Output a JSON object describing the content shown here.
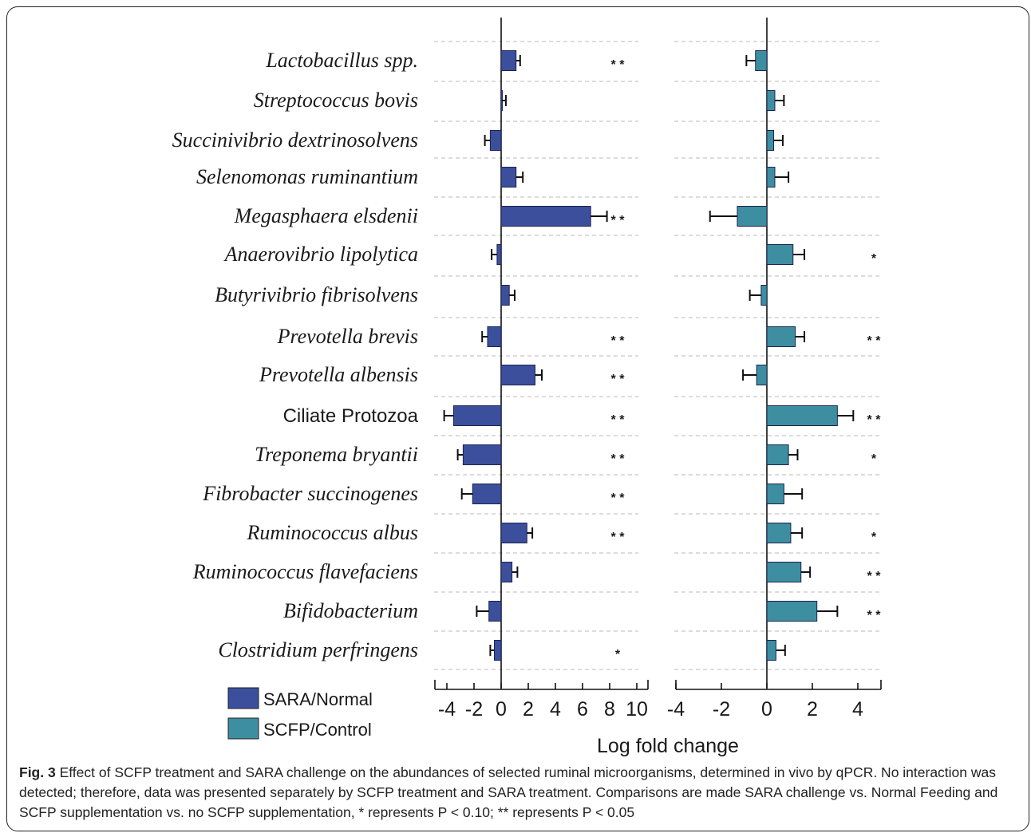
{
  "chart_data": [
    {
      "type": "bar",
      "orientation": "horizontal",
      "series": [
        {
          "name": "SARA/Normal",
          "color": "#3b4f9c"
        }
      ],
      "categories": [
        "Lactobacillus spp.",
        "Streptococcus bovis",
        "Succinivibrio dextrinosolvens",
        "Selenomonas ruminantium",
        "Megasphaera elsdenii",
        "Anaerovibrio lipolytica",
        "Butyrivibrio fibrisolvens",
        "Prevotella brevis",
        "Prevotella albensis",
        "Ciliate Protozoa",
        "Treponema bryantii",
        "Fibrobacter succinogenes",
        "Ruminococcus albus",
        "Ruminococcus flavefaciens",
        "Bifidobacterium",
        "Clostridium perfringens"
      ],
      "values": [
        1.1,
        0.05,
        -0.8,
        1.1,
        6.6,
        -0.3,
        0.6,
        -1.0,
        2.5,
        -3.5,
        -2.8,
        -2.1,
        1.9,
        0.8,
        -0.9,
        -0.5
      ],
      "errors": [
        0.3,
        0.3,
        0.4,
        0.5,
        1.2,
        0.4,
        0.4,
        0.4,
        0.5,
        0.7,
        0.4,
        0.8,
        0.4,
        0.4,
        0.9,
        0.3
      ],
      "significance": [
        "**",
        "",
        "",
        "",
        "**",
        "",
        "",
        "**",
        "**",
        "**",
        "**",
        "**",
        "**",
        "",
        "",
        "*"
      ],
      "xlim": [
        -5,
        11
      ],
      "xticks": [
        "-4",
        "-2",
        "0",
        "2",
        "4",
        "6",
        "8",
        "10"
      ]
    },
    {
      "type": "bar",
      "orientation": "horizontal",
      "series": [
        {
          "name": "SCFP/Control",
          "color": "#3d8ea0"
        }
      ],
      "values": [
        -0.5,
        0.35,
        0.3,
        0.35,
        -1.3,
        1.15,
        -0.25,
        1.25,
        -0.45,
        3.1,
        0.95,
        0.75,
        1.05,
        1.5,
        2.2,
        0.4
      ],
      "errors": [
        0.4,
        0.4,
        0.4,
        0.6,
        1.2,
        0.5,
        0.5,
        0.4,
        0.6,
        0.7,
        0.4,
        0.8,
        0.5,
        0.4,
        0.9,
        0.4
      ],
      "significance": [
        "",
        "",
        "",
        "",
        "",
        "*",
        "",
        "**",
        "",
        "**",
        "*",
        "",
        "*",
        "**",
        "**",
        ""
      ],
      "xlim": [
        -4,
        5
      ],
      "xticks": [
        "-4",
        "-2",
        "0",
        "2",
        "4"
      ]
    }
  ],
  "xlabel": "Log  fold change",
  "legend": [
    {
      "label": "SARA/Normal",
      "color": "#3b4f9c"
    },
    {
      "label": "SCFP/Control",
      "color": "#3d8ea0"
    }
  ],
  "caption": {
    "figure_number": "Fig. 3",
    "text": "Effect of SCFP treatment and SARA challenge on the abundances of selected ruminal microorganisms, determined in vivo by qPCR. No interaction was detected; therefore, data was presented separately by SCFP treatment and SARA treatment. Comparisons are made SARA challenge vs. Normal Feeding and SCFP supplementation vs. no SCFP supplementation, * represents P < 0.10; ** represents P < 0.05"
  }
}
